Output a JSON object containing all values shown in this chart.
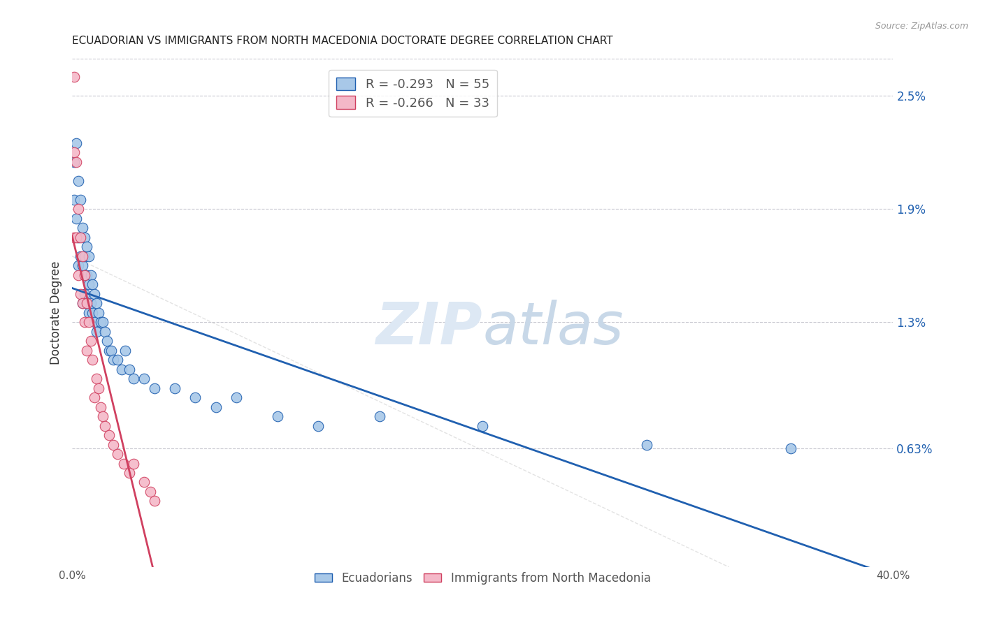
{
  "title": "ECUADORIAN VS IMMIGRANTS FROM NORTH MACEDONIA DOCTORATE DEGREE CORRELATION CHART",
  "source": "Source: ZipAtlas.com",
  "ylabel": "Doctorate Degree",
  "right_yticks": [
    0.0063,
    0.013,
    0.019,
    0.025
  ],
  "right_yticklabels": [
    "0.63%",
    "1.3%",
    "1.9%",
    "2.5%"
  ],
  "xlim": [
    0.0,
    0.4
  ],
  "ylim": [
    0.0,
    0.027
  ],
  "watermark_zip": "ZIP",
  "watermark_atlas": "atlas",
  "blue_R": "-0.293",
  "blue_N": "55",
  "pink_R": "-0.266",
  "pink_N": "33",
  "blue_color": "#a8c8e8",
  "pink_color": "#f4b8c8",
  "blue_line_color": "#2060b0",
  "pink_line_color": "#d04060",
  "grid_color": "#c8c8d0",
  "ecuadorians_x": [
    0.001,
    0.001,
    0.002,
    0.002,
    0.003,
    0.003,
    0.003,
    0.004,
    0.004,
    0.005,
    0.005,
    0.005,
    0.006,
    0.006,
    0.006,
    0.006,
    0.007,
    0.007,
    0.007,
    0.008,
    0.008,
    0.008,
    0.009,
    0.009,
    0.01,
    0.01,
    0.011,
    0.011,
    0.012,
    0.012,
    0.013,
    0.014,
    0.015,
    0.016,
    0.017,
    0.018,
    0.019,
    0.02,
    0.022,
    0.024,
    0.026,
    0.028,
    0.03,
    0.035,
    0.04,
    0.05,
    0.06,
    0.07,
    0.08,
    0.1,
    0.12,
    0.15,
    0.2,
    0.28,
    0.35
  ],
  "ecuadorians_y": [
    0.0215,
    0.0195,
    0.0225,
    0.0185,
    0.0205,
    0.0175,
    0.016,
    0.0195,
    0.0165,
    0.018,
    0.016,
    0.014,
    0.0175,
    0.0165,
    0.0155,
    0.0145,
    0.017,
    0.0155,
    0.014,
    0.0165,
    0.015,
    0.0135,
    0.0155,
    0.014,
    0.015,
    0.0135,
    0.0145,
    0.013,
    0.014,
    0.0125,
    0.0135,
    0.013,
    0.013,
    0.0125,
    0.012,
    0.0115,
    0.0115,
    0.011,
    0.011,
    0.0105,
    0.0115,
    0.0105,
    0.01,
    0.01,
    0.0095,
    0.0095,
    0.009,
    0.0085,
    0.009,
    0.008,
    0.0075,
    0.008,
    0.0075,
    0.0065,
    0.0063
  ],
  "macedonia_x": [
    0.001,
    0.001,
    0.001,
    0.002,
    0.002,
    0.003,
    0.003,
    0.004,
    0.004,
    0.005,
    0.005,
    0.006,
    0.006,
    0.007,
    0.007,
    0.008,
    0.009,
    0.01,
    0.011,
    0.012,
    0.013,
    0.014,
    0.015,
    0.016,
    0.018,
    0.02,
    0.022,
    0.025,
    0.028,
    0.03,
    0.035,
    0.038,
    0.04
  ],
  "macedonia_y": [
    0.026,
    0.022,
    0.0175,
    0.0215,
    0.0175,
    0.019,
    0.0155,
    0.0175,
    0.0145,
    0.0165,
    0.014,
    0.0155,
    0.013,
    0.014,
    0.0115,
    0.013,
    0.012,
    0.011,
    0.009,
    0.01,
    0.0095,
    0.0085,
    0.008,
    0.0075,
    0.007,
    0.0065,
    0.006,
    0.0055,
    0.005,
    0.0055,
    0.0045,
    0.004,
    0.0035
  ]
}
